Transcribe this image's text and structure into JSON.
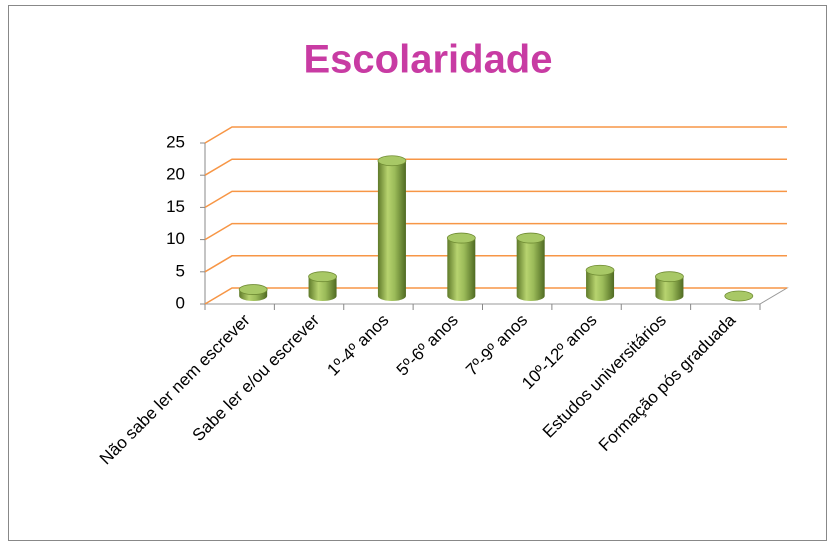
{
  "chart_data": {
    "type": "bar3d",
    "title": "Escolaridade",
    "categories": [
      "Não sabe ler nem escrever",
      "Sabe ler e/ou escrever",
      "1º-4º anos",
      "5º-6º anos",
      "7º-9º anos",
      "10º-12º anos",
      "Estudos universitários",
      "Formação pós graduada"
    ],
    "values": [
      1,
      3,
      21,
      9,
      9,
      4,
      3,
      0
    ],
    "color": "#9bbb59",
    "grid_color": "#f79646",
    "ylim": [
      0,
      25
    ],
    "yticks": [
      0,
      5,
      10,
      15,
      20,
      25
    ],
    "grid": true
  }
}
